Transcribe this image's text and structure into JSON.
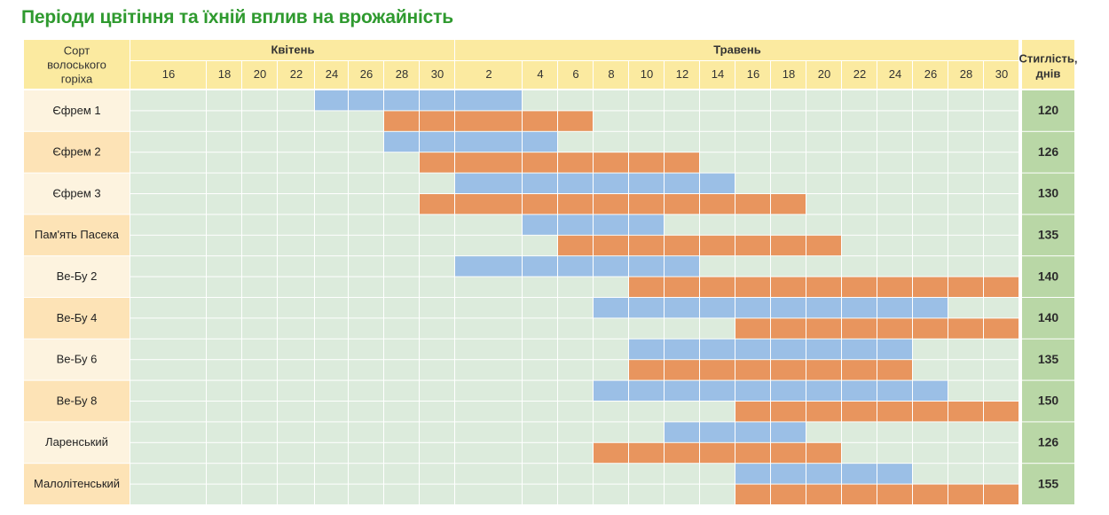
{
  "title": "Періоди цвітіння та їхній вплив на врожайність",
  "colors": {
    "bloom_a": "#9bbfe6",
    "bloom_b": "#e8955e",
    "cell": "#dcebdc",
    "header": "#fbeaa0",
    "label_bg": "#fde3b6",
    "label_bg_alt": "#fdf3df",
    "maturity_bg": "#b9d7a6"
  },
  "chart_data": {
    "type": "table",
    "corner_label": "Сорт волоського горіха",
    "months": [
      {
        "label": "Квітень",
        "days": [
          "16",
          "18",
          "20",
          "22",
          "24",
          "26",
          "28",
          "30"
        ]
      },
      {
        "label": "Травень",
        "days": [
          "2",
          "4",
          "6",
          "8",
          "10",
          "12",
          "14",
          "16",
          "18",
          "20",
          "22",
          "24",
          "26",
          "28",
          "30"
        ]
      }
    ],
    "maturity_header": "Стиглість, днів",
    "varieties": [
      {
        "name": "Єфрем 1",
        "maturity": "120",
        "bloom_a": [
          "Apr 24",
          "May 1"
        ],
        "bloom_b": [
          "Apr 28",
          "May 7"
        ]
      },
      {
        "name": "Єфрем 2",
        "maturity": "126",
        "bloom_a": [
          "Apr 28",
          "May 5"
        ],
        "bloom_b": [
          "Apr 30",
          "May 13"
        ]
      },
      {
        "name": "Єфрем 3",
        "maturity": "130",
        "bloom_a": [
          "May 2",
          "May 15"
        ],
        "bloom_b": [
          "Apr 30",
          "May 19"
        ]
      },
      {
        "name": "Пам'ять Пасека",
        "maturity": "135",
        "bloom_a": [
          "May 4",
          "May 11"
        ],
        "bloom_b": [
          "May 6",
          "May 21"
        ]
      },
      {
        "name": "Ве-Бу 2",
        "maturity": "140",
        "bloom_a": [
          "May 2",
          "May 13"
        ],
        "bloom_b": [
          "May 10",
          "May 31"
        ]
      },
      {
        "name": "Ве-Бу 4",
        "maturity": "140",
        "bloom_a": [
          "May 8",
          "May 27"
        ],
        "bloom_b": [
          "May 16",
          "May 31"
        ]
      },
      {
        "name": "Ве-Бу 6",
        "maturity": "135",
        "bloom_a": [
          "May 10",
          "May 25"
        ],
        "bloom_b": [
          "May 10",
          "May 25"
        ]
      },
      {
        "name": "Ве-Бу 8",
        "maturity": "150",
        "bloom_a": [
          "May 8",
          "May 27"
        ],
        "bloom_b": [
          "May 16",
          "May 31"
        ]
      },
      {
        "name": "Ларенський",
        "maturity": "126",
        "bloom_a": [
          "May 12",
          "May 19"
        ],
        "bloom_b": [
          "May 8",
          "May 21"
        ]
      },
      {
        "name": "Малолітенський",
        "maturity": "155",
        "bloom_a": [
          "May 16",
          "May 25"
        ],
        "bloom_b": [
          "May 16",
          "May 31"
        ]
      }
    ]
  }
}
